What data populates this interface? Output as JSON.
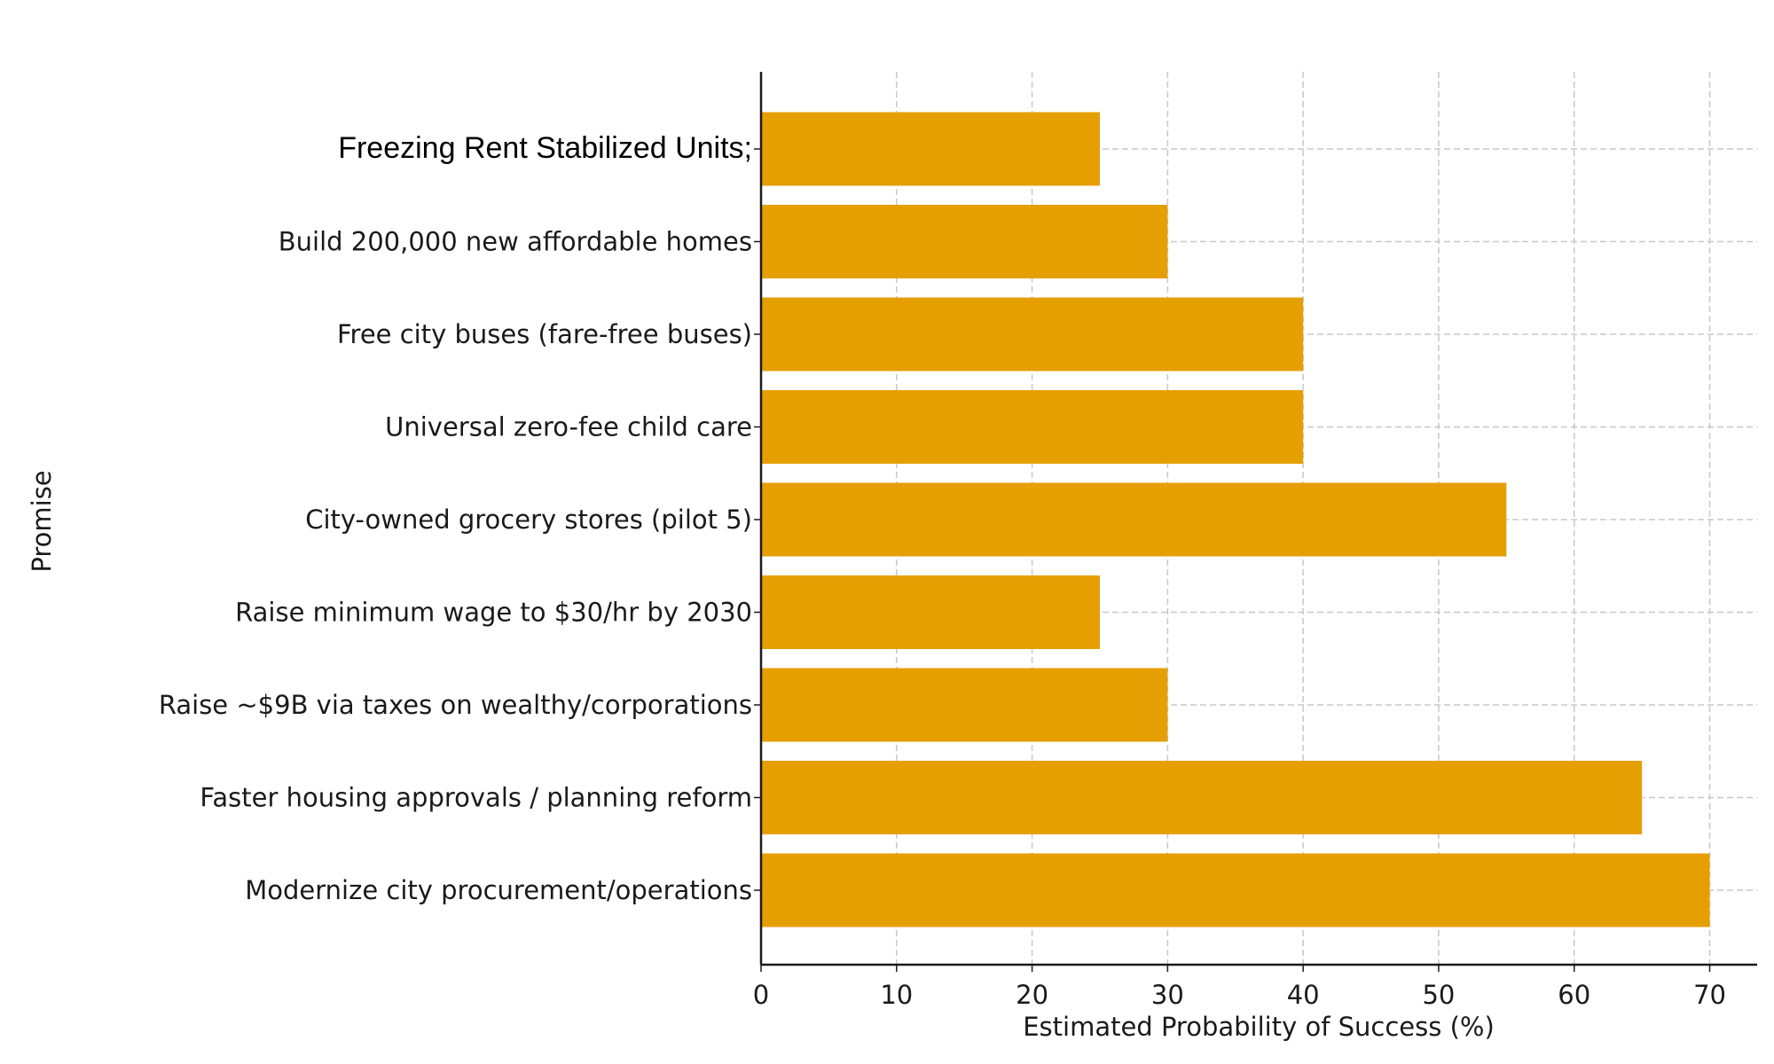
{
  "chart_data": {
    "type": "bar",
    "orientation": "horizontal",
    "title": "",
    "xlabel": "Estimated Probability of Success (%)",
    "ylabel": "Promise",
    "xlim": [
      0,
      73.5
    ],
    "xticks": [
      0,
      10,
      20,
      30,
      40,
      50,
      60,
      70
    ],
    "grid": true,
    "bar_color": "#E69F00",
    "categories": [
      "Freezing Rent Stabilized Units;",
      "Build 200,000 new affordable homes",
      "Free city buses (fare-free buses)",
      "Universal zero-fee child care",
      "City-owned grocery stores (pilot 5)",
      "Raise minimum wage to $30/hr by 2030",
      "Raise ~$9B via taxes on wealthy/corporations",
      "Faster housing approvals / planning reform",
      "Modernize city procurement/operations"
    ],
    "values": [
      25,
      30,
      40,
      40,
      55,
      25,
      30,
      65,
      70
    ]
  }
}
